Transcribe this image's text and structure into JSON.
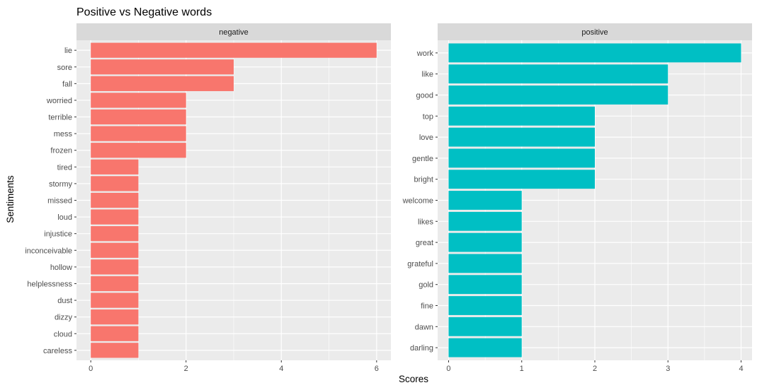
{
  "chart_data": {
    "type": "bar",
    "orientation": "horizontal",
    "title": "Positive vs Negative words",
    "xlabel": "Scores",
    "ylabel": "Sentiments",
    "panels": [
      {
        "strip": "negative",
        "color": "#F8766D",
        "xlim": [
          0,
          6.3
        ],
        "x_ticks": [
          0,
          2,
          4,
          6
        ],
        "categories": [
          "lie",
          "sore",
          "fall",
          "worried",
          "terrible",
          "mess",
          "frozen",
          "tired",
          "stormy",
          "missed",
          "loud",
          "injustice",
          "inconceivable",
          "hollow",
          "helplessness",
          "dust",
          "dizzy",
          "cloud",
          "careless"
        ],
        "values": [
          6,
          3,
          3,
          2,
          2,
          2,
          2,
          1,
          1,
          1,
          1,
          1,
          1,
          1,
          1,
          1,
          1,
          1,
          1
        ]
      },
      {
        "strip": "positive",
        "color": "#00BFC4",
        "xlim": [
          0,
          4.2
        ],
        "x_ticks": [
          0,
          1,
          2,
          3,
          4
        ],
        "categories": [
          "work",
          "like",
          "good",
          "top",
          "love",
          "gentle",
          "bright",
          "welcome",
          "likes",
          "great",
          "grateful",
          "gold",
          "fine",
          "dawn",
          "darling"
        ],
        "values": [
          4,
          3,
          3,
          2,
          2,
          2,
          2,
          1,
          1,
          1,
          1,
          1,
          1,
          1,
          1
        ]
      }
    ]
  },
  "colors": {
    "panel_background": "#EBEBEB",
    "strip_background": "#D9D9D9",
    "grid": "#FFFFFF"
  }
}
